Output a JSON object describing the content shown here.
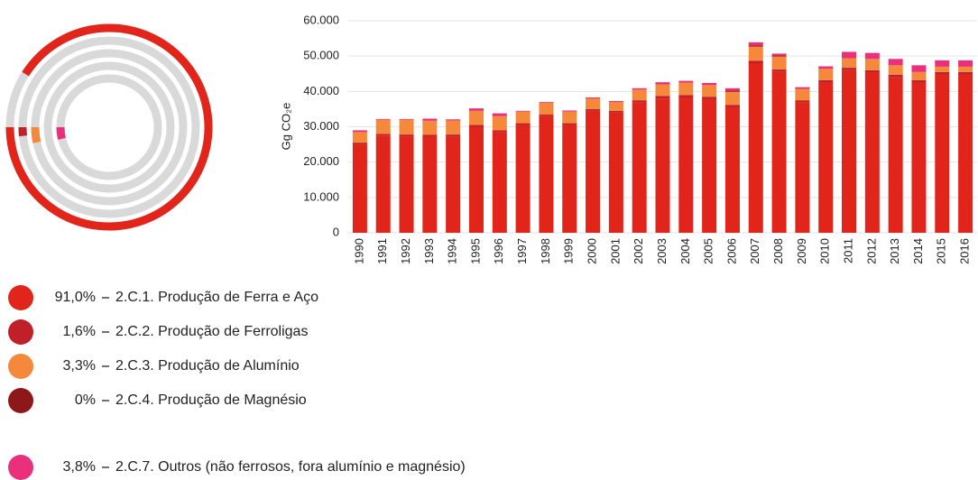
{
  "chart_data": [
    {
      "type": "radial_bar",
      "values": [
        91.0,
        1.6,
        3.3,
        0,
        3.8
      ],
      "value_labels": [
        "91,0%",
        "1,6%",
        "3,3%",
        "0%",
        "3,8%"
      ]
    },
    {
      "type": "stacked_bar",
      "ylabel": "Gg CO₂e",
      "categories": [
        "1990",
        "1991",
        "1992",
        "1993",
        "1994",
        "1995",
        "1996",
        "1997",
        "1998",
        "1999",
        "2000",
        "2001",
        "2002",
        "2003",
        "2004",
        "2005",
        "2006",
        "2007",
        "2008",
        "2009",
        "2010",
        "2011",
        "2012",
        "2013",
        "2014",
        "2015",
        "2016"
      ],
      "ylim": [
        0,
        60000
      ],
      "yticks": [
        0,
        {
          "value": 10000,
          "label": "10.000"
        },
        {
          "value": 20000,
          "label": "20.000"
        },
        {
          "value": 30000,
          "label": "30.000"
        },
        {
          "value": 40000,
          "label": "40.000"
        },
        {
          "value": 50000,
          "label": "50.000"
        },
        {
          "value": 60000,
          "label": "60.000"
        }
      ],
      "grid": true,
      "series": [
        {
          "name": "2.C.1. Produção de Ferra e Aço",
          "color": "#e1251b",
          "values": [
            25000,
            27500,
            27300,
            27200,
            27300,
            30000,
            28500,
            30500,
            33000,
            30500,
            34500,
            34000,
            37000,
            38000,
            38300,
            37800,
            35500,
            48000,
            45500,
            37000,
            42500,
            46000,
            45300,
            44000,
            42500,
            44800,
            44800
          ]
        },
        {
          "name": "2.C.2. Produção de Ferroligas",
          "color": "#c0202a",
          "values": [
            500,
            500,
            500,
            500,
            500,
            500,
            500,
            500,
            500,
            500,
            500,
            500,
            500,
            700,
            700,
            700,
            700,
            700,
            700,
            500,
            700,
            700,
            700,
            700,
            700,
            700,
            700
          ]
        },
        {
          "name": "2.C.3. Produção de Alumínio",
          "color": "#f5883a",
          "values": [
            3000,
            4000,
            4200,
            4000,
            4000,
            4000,
            4000,
            3300,
            3300,
            3300,
            3000,
            2500,
            3000,
            3300,
            3500,
            3300,
            3700,
            4000,
            3700,
            3200,
            3200,
            2700,
            3200,
            2700,
            2300,
            1500,
            1500
          ]
        },
        {
          "name": "2.C.4. Produção de Magnésio",
          "color": "#8e1719",
          "values": [
            0,
            0,
            0,
            0,
            0,
            0,
            0,
            0,
            0,
            0,
            0,
            0,
            0,
            0,
            0,
            0,
            300,
            300,
            300,
            0,
            0,
            0,
            0,
            0,
            0,
            0,
            0
          ]
        },
        {
          "name": "2.C.7. Outros (não ferrosos, fora alumínio e magnésio)",
          "color": "#ea2f7b",
          "values": [
            500,
            200,
            200,
            600,
            300,
            700,
            800,
            200,
            200,
            300,
            300,
            300,
            400,
            600,
            500,
            600,
            700,
            900,
            500,
            500,
            700,
            1800,
            1700,
            1800,
            1900,
            1800,
            1800
          ]
        }
      ]
    }
  ]
}
